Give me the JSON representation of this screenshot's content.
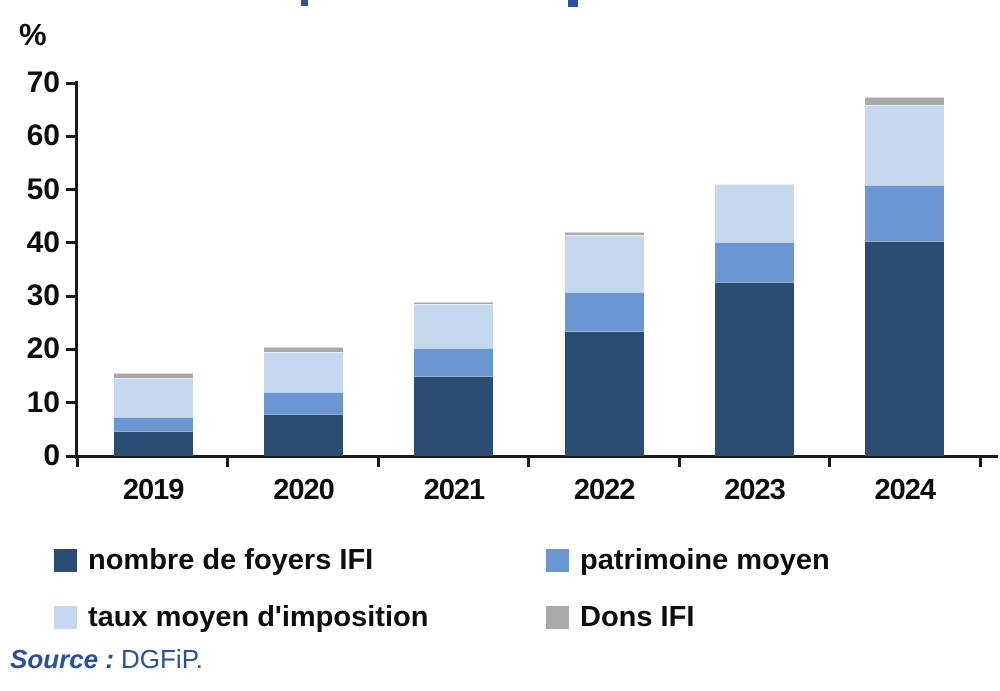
{
  "frame": {
    "background": "#ffffff",
    "clipped_title_color": "#2B51A5"
  },
  "axes": {
    "unit_label": "%",
    "yticks": [
      0,
      10,
      20,
      30,
      40,
      50,
      60,
      70
    ],
    "axis_color": "#1A1A1A"
  },
  "chart_data": {
    "type": "bar",
    "subtype": "stacked",
    "categories": [
      "2019",
      "2020",
      "2021",
      "2022",
      "2023",
      "2024"
    ],
    "series": [
      {
        "name": "nombre de foyers IFI",
        "color": "#2C4D73",
        "values": [
          4.7,
          7.9,
          15.0,
          23.5,
          32.6,
          40.4
        ]
      },
      {
        "name": "patrimoine moyen",
        "color": "#6A97D1",
        "values": [
          2.6,
          4.2,
          5.3,
          7.2,
          7.5,
          10.4
        ]
      },
      {
        "name": "taux moyen d'imposition",
        "color": "#C5D8ED",
        "values": [
          7.4,
          7.4,
          8.2,
          10.7,
          10.9,
          15.0
        ]
      },
      {
        "name": "Dons IFI",
        "color": "#A9A9A9",
        "values": [
          0.9,
          1.0,
          0.5,
          0.6,
          0.0,
          1.5
        ]
      }
    ],
    "stack_totals": [
      15.6,
      20.5,
      29.0,
      42.0,
      51.0,
      67.3
    ],
    "title": "",
    "xlabel": "",
    "ylabel": "%",
    "ylim": [
      0,
      70
    ],
    "grid": false,
    "legend_position": "bottom"
  },
  "legend": {
    "rows": [
      [
        0,
        1
      ],
      [
        2,
        3
      ]
    ]
  },
  "source": {
    "label": "Source :",
    "value": "DGFiP.",
    "color": "#2750A3"
  }
}
